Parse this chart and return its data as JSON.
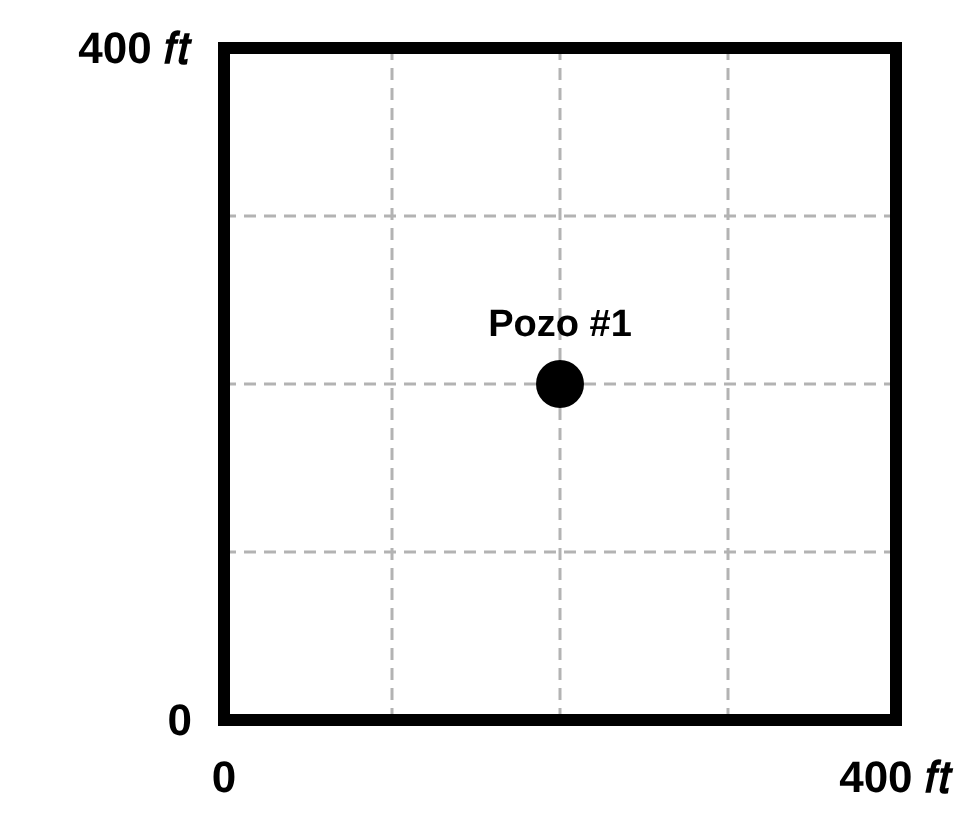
{
  "chart_data": {
    "type": "scatter",
    "x": [
      200
    ],
    "values": [
      200
    ],
    "color": "#000000",
    "marker": "circle",
    "annotations": [
      {
        "text": "Pozo #1",
        "x": 200,
        "y": 200
      }
    ],
    "xlim": [
      0,
      400
    ],
    "ylim": [
      0,
      400
    ],
    "xticks": [
      0,
      {
        "value": 100,
        "label": null
      },
      {
        "value": 200,
        "label": null
      },
      {
        "value": 300,
        "label": null
      },
      {
        "value": 400,
        "label": "400 𝑓𝑡"
      }
    ],
    "yticks": [
      0,
      {
        "value": 100,
        "label": null
      },
      {
        "value": 200,
        "label": null
      },
      {
        "value": 300,
        "label": null
      },
      {
        "value": 400,
        "label": "400 𝑓𝑡"
      }
    ],
    "grid": true
  }
}
